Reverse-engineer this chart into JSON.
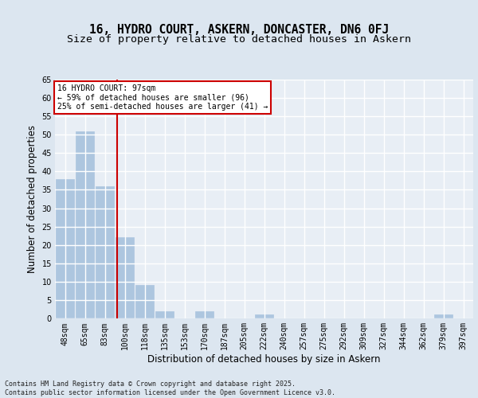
{
  "title1": "16, HYDRO COURT, ASKERN, DONCASTER, DN6 0FJ",
  "title2": "Size of property relative to detached houses in Askern",
  "xlabel": "Distribution of detached houses by size in Askern",
  "ylabel": "Number of detached properties",
  "categories": [
    "48sqm",
    "65sqm",
    "83sqm",
    "100sqm",
    "118sqm",
    "135sqm",
    "153sqm",
    "170sqm",
    "187sqm",
    "205sqm",
    "222sqm",
    "240sqm",
    "257sqm",
    "275sqm",
    "292sqm",
    "309sqm",
    "327sqm",
    "344sqm",
    "362sqm",
    "379sqm",
    "397sqm"
  ],
  "values": [
    38,
    51,
    36,
    22,
    9,
    2,
    0,
    2,
    0,
    0,
    1,
    0,
    0,
    0,
    0,
    0,
    0,
    0,
    0,
    1,
    0
  ],
  "bar_color": "#adc6df",
  "bar_edge_color": "#adc6df",
  "annotation_text": "16 HYDRO COURT: 97sqm\n← 59% of detached houses are smaller (96)\n25% of semi-detached houses are larger (41) →",
  "annotation_box_color": "#ffffff",
  "annotation_box_edge_color": "#cc0000",
  "vline_color": "#cc0000",
  "ylim": [
    0,
    65
  ],
  "yticks": [
    0,
    5,
    10,
    15,
    20,
    25,
    30,
    35,
    40,
    45,
    50,
    55,
    60,
    65
  ],
  "bg_color": "#dce6f0",
  "plot_bg_color": "#e8eef5",
  "grid_color": "#ffffff",
  "footer": "Contains HM Land Registry data © Crown copyright and database right 2025.\nContains public sector information licensed under the Open Government Licence v3.0.",
  "title_fontsize": 10.5,
  "subtitle_fontsize": 9.5,
  "tick_fontsize": 7,
  "label_fontsize": 8.5,
  "footer_fontsize": 6
}
